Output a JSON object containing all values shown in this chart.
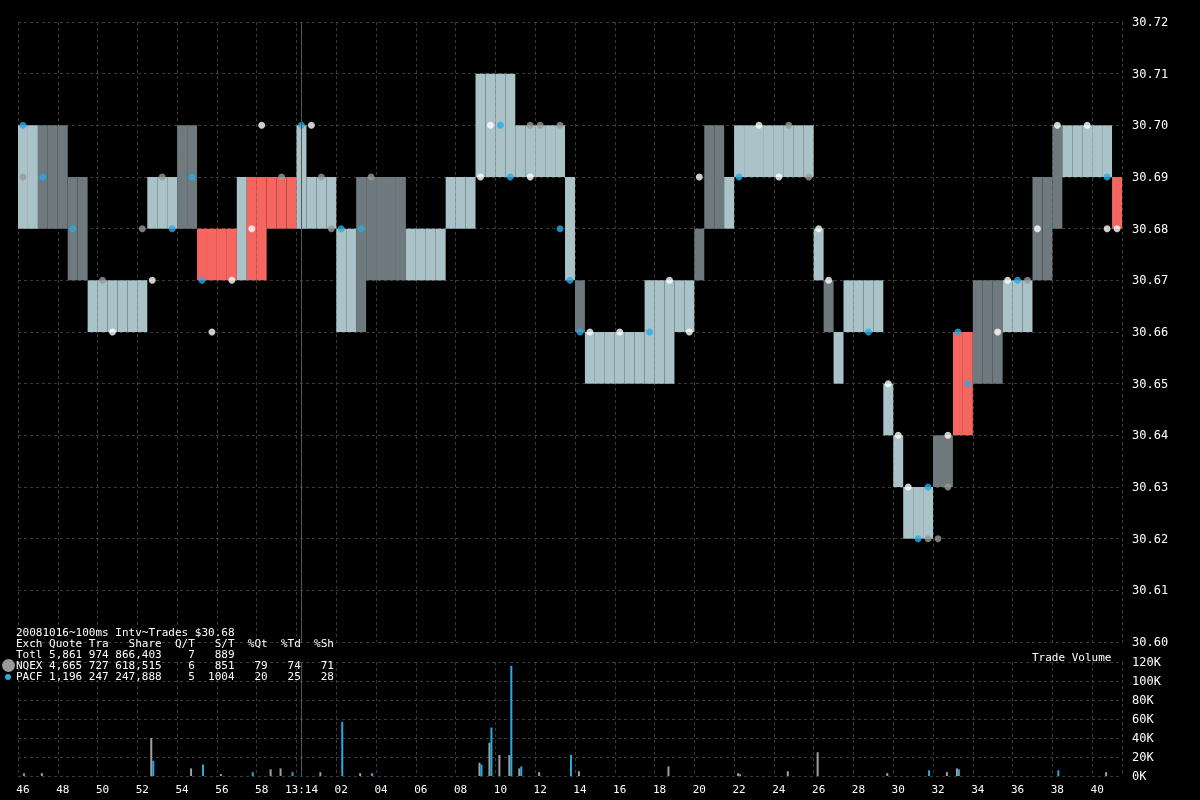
{
  "chart_data": [
    {
      "type": "bar",
      "title": "20081016~100ms Intv~Trades $30.68",
      "tick_labels": "y",
      "grid": true,
      "marker": "circle",
      "annotations": [
        "Exch Quote Tra   Share  Q/T   S/T  %Qt  %Td  %Sh",
        "Totl 5,861 974 866,403    7   889",
        "NQEX 4,665 727 618,515    6   851   79   74   71",
        "PACF 1,196 247 247,888    5  1004   20   25   28"
      ],
      "categories": [
        "46",
        null,
        null,
        null,
        "48",
        null,
        null,
        null,
        "50",
        null,
        null,
        null,
        "52",
        null,
        null,
        null,
        "54",
        null,
        null,
        null,
        "56",
        null,
        null,
        null,
        "58",
        null,
        null,
        null,
        "13:14",
        null,
        null,
        null,
        "02",
        null,
        null,
        null,
        "04",
        null,
        null,
        null,
        "06",
        null,
        null,
        null,
        "08",
        null,
        null,
        null,
        "10",
        null,
        null,
        null,
        "12",
        null,
        null,
        null,
        "14",
        null,
        null,
        null,
        "16",
        null,
        null,
        null,
        "18",
        null,
        null,
        null,
        "20",
        null,
        null,
        null,
        "22",
        null,
        null,
        null,
        "24",
        null,
        null,
        null,
        "26",
        null,
        null,
        null,
        "28",
        null,
        null,
        null,
        "30",
        null,
        null,
        null,
        "32",
        null,
        null,
        null,
        "34",
        null,
        null,
        null,
        "36",
        null,
        null,
        null,
        "38",
        null,
        null,
        null,
        "40",
        null,
        null
      ],
      "ylim": [
        30.6,
        30.72
      ],
      "yticks": [
        {
          "value": 30.6,
          "label": "30.60"
        },
        {
          "value": 30.61,
          "label": "30.61"
        },
        {
          "value": 30.62,
          "label": "30.62"
        },
        {
          "value": 30.63,
          "label": "30.63"
        },
        {
          "value": 30.64,
          "label": "30.64"
        },
        {
          "value": 30.65,
          "label": "30.65"
        },
        {
          "value": 30.66,
          "label": "30.66"
        },
        {
          "value": 30.67,
          "label": "30.67"
        },
        {
          "value": 30.68,
          "label": "30.68"
        },
        {
          "value": 30.69,
          "label": "30.69"
        },
        {
          "value": 30.7,
          "label": "30.70"
        },
        {
          "value": 30.71,
          "label": "30.71"
        },
        {
          "value": 30.72,
          "label": "30.72"
        }
      ],
      "ref_lines": [
        {
          "axis": "x",
          "value": "13:14",
          "color": "#555555"
        }
      ],
      "series": [
        {
          "base": [
            30.68,
            30.68,
            30.68,
            30.68,
            30.68,
            30.67,
            30.67,
            30.66,
            30.66,
            30.66,
            30.66,
            30.66,
            30.66,
            30.68,
            30.68,
            30.68,
            30.68,
            30.68,
            30.67,
            30.67,
            30.67,
            30.67,
            30.67,
            30.67,
            30.67,
            30.68,
            30.68,
            30.68,
            30.68,
            30.68,
            30.68,
            30.68,
            30.66,
            30.66,
            30.66,
            30.67,
            30.67,
            30.67,
            30.67,
            30.67,
            30.67,
            30.67,
            30.67,
            30.68,
            30.68,
            30.68,
            30.69,
            30.69,
            30.69,
            30.69,
            30.69,
            30.69,
            30.69,
            30.69,
            30.69,
            30.67,
            30.66,
            30.65,
            30.65,
            30.65,
            30.65,
            30.65,
            30.65,
            30.65,
            30.65,
            30.65,
            30.66,
            30.66,
            30.67,
            30.68,
            30.68,
            30.68,
            30.69,
            30.69,
            30.69,
            30.69,
            30.69,
            30.69,
            30.69,
            30.69,
            30.67,
            30.66,
            30.65,
            30.66,
            30.66,
            30.66,
            30.66,
            30.64,
            30.63,
            30.62,
            30.62,
            30.62,
            30.63,
            30.63,
            30.64,
            30.64,
            30.65,
            30.65,
            30.65,
            30.66,
            30.66,
            30.66,
            30.67,
            30.67,
            30.68,
            30.69,
            30.69,
            30.69,
            30.69,
            30.69,
            30.68
          ],
          "values": [
            0.02,
            0.02,
            0.02,
            0.02,
            0.02,
            0.02,
            0.02,
            0.01,
            0.01,
            0.01,
            0.01,
            0.01,
            0.01,
            0.01,
            0.01,
            0.01,
            0.02,
            0.02,
            0.01,
            0.01,
            0.01,
            0.01,
            0.02,
            0.02,
            0.02,
            0.01,
            0.01,
            0.01,
            0.02,
            0.01,
            0.01,
            0.01,
            0.02,
            0.02,
            0.03,
            0.02,
            0.02,
            0.02,
            0.02,
            0.01,
            0.01,
            0.01,
            0.01,
            0.01,
            0.01,
            0.01,
            0.02,
            0.02,
            0.02,
            0.02,
            0.01,
            0.01,
            0.01,
            0.01,
            0.01,
            0.02,
            0.01,
            0.01,
            0.01,
            0.01,
            0.01,
            0.01,
            0.01,
            0.02,
            0.02,
            0.02,
            0.01,
            0.01,
            0.01,
            0.02,
            0.02,
            0.01,
            0.01,
            0.01,
            0.01,
            0.01,
            0.01,
            0.01,
            0.01,
            0.01,
            0.01,
            0.01,
            0.01,
            0.01,
            0.01,
            0.01,
            0.01,
            0.01,
            0.01,
            0.01,
            0.01,
            0.01,
            0.01,
            0.01,
            0.02,
            0.02,
            0.02,
            0.02,
            0.02,
            0.01,
            0.01,
            0.01,
            0.02,
            0.02,
            0.02,
            0.01,
            0.01,
            0.01,
            0.01,
            0.01,
            0.01
          ],
          "colors": [
            "#a9c3c9",
            "#a9c3c9",
            "#6f7a7e",
            "#6f7a7e",
            "#6f7a7e",
            "#6f7a7e",
            "#6f7a7e",
            "#a9c3c9",
            "#a9c3c9",
            "#a9c3c9",
            "#a9c3c9",
            "#a9c3c9",
            "#a9c3c9",
            "#a9c3c9",
            "#a9c3c9",
            "#a9c3c9",
            "#6f7a7e",
            "#6f7a7e",
            "#f4665f",
            "#f4665f",
            "#f4665f",
            "#f4665f",
            "#a9c3c9",
            "#f4665f",
            "#f4665f",
            "#f4665f",
            "#f4665f",
            "#f4665f",
            "#a9c3c9",
            "#a9c3c9",
            "#a9c3c9",
            "#a9c3c9",
            "#a9c3c9",
            "#a9c3c9",
            "#6f7a7e",
            "#6f7a7e",
            "#6f7a7e",
            "#6f7a7e",
            "#6f7a7e",
            "#a9c3c9",
            "#a9c3c9",
            "#a9c3c9",
            "#a9c3c9",
            "#a9c3c9",
            "#a9c3c9",
            "#a9c3c9",
            "#a9c3c9",
            "#a9c3c9",
            "#a9c3c9",
            "#a9c3c9",
            "#a9c3c9",
            "#a9c3c9",
            "#a9c3c9",
            "#a9c3c9",
            "#a9c3c9",
            "#a9c3c9",
            "#6f7a7e",
            "#a9c3c9",
            "#a9c3c9",
            "#a9c3c9",
            "#a9c3c9",
            "#a9c3c9",
            "#a9c3c9",
            "#a9c3c9",
            "#a9c3c9",
            "#a9c3c9",
            "#a9c3c9",
            "#a9c3c9",
            "#6f7a7e",
            "#6f7a7e",
            "#6f7a7e",
            "#a9c3c9",
            "#a9c3c9",
            "#a9c3c9",
            "#a9c3c9",
            "#a9c3c9",
            "#a9c3c9",
            "#a9c3c9",
            "#a9c3c9",
            "#a9c3c9",
            "#a9c3c9",
            "#6f7a7e",
            "#a9c3c9",
            "#a9c3c9",
            "#a9c3c9",
            "#a9c3c9",
            "#a9c3c9",
            "#a9c3c9",
            "#a9c3c9",
            "#a9c3c9",
            "#a9c3c9",
            "#a9c3c9",
            "#6f7a7e",
            "#6f7a7e",
            "#f4665f",
            "#f4665f",
            "#6f7a7e",
            "#6f7a7e",
            "#6f7a7e",
            "#a9c3c9",
            "#a9c3c9",
            "#a9c3c9",
            "#6f7a7e",
            "#6f7a7e",
            "#6f7a7e",
            "#a9c3c9",
            "#a9c3c9",
            "#a9c3c9",
            "#a9c3c9",
            "#a9c3c9",
            "#f4665f"
          ]
        },
        {
          "type": "scatter",
          "color": "#999999",
          "values": [
            30.69,
            null,
            null,
            null,
            null,
            null,
            null,
            null,
            30.67,
            null,
            null,
            null,
            30.68,
            null,
            30.69,
            null,
            null,
            null,
            null,
            null,
            null,
            null,
            null,
            null,
            null,
            null,
            30.69,
            null,
            null,
            null,
            30.69,
            30.68,
            null,
            null,
            null,
            30.69,
            null,
            null,
            null,
            null,
            null,
            null,
            null,
            null,
            null,
            null,
            null,
            null,
            null,
            null,
            null,
            30.7,
            30.7,
            null,
            30.7,
            null,
            null,
            null,
            null,
            null,
            null,
            null,
            null,
            null,
            null,
            null,
            null,
            null,
            null,
            null,
            null,
            null,
            null,
            null,
            null,
            null,
            null,
            30.7,
            null,
            30.69,
            null,
            null,
            null,
            null,
            null,
            null,
            null,
            null,
            null,
            null,
            null,
            30.62,
            30.62,
            30.63,
            null,
            null,
            null,
            null,
            null,
            null,
            null,
            30.67,
            null,
            null,
            null,
            null,
            null,
            null,
            null,
            null,
            null
          ]
        },
        {
          "type": "scatter",
          "color": "#29abe2",
          "values": [
            30.7,
            null,
            30.69,
            null,
            null,
            30.68,
            null,
            null,
            null,
            null,
            null,
            null,
            null,
            null,
            null,
            30.68,
            null,
            30.69,
            30.67,
            null,
            null,
            null,
            null,
            null,
            null,
            null,
            null,
            null,
            30.7,
            null,
            null,
            null,
            30.68,
            null,
            30.68,
            null,
            null,
            null,
            null,
            null,
            null,
            null,
            null,
            null,
            null,
            null,
            null,
            null,
            30.7,
            30.69,
            null,
            null,
            null,
            null,
            30.68,
            30.67,
            30.66,
            null,
            null,
            null,
            null,
            null,
            null,
            30.66,
            null,
            null,
            null,
            null,
            null,
            null,
            null,
            null,
            30.69,
            null,
            null,
            null,
            null,
            null,
            null,
            null,
            null,
            null,
            null,
            null,
            null,
            30.66,
            null,
            null,
            null,
            null,
            30.62,
            30.63,
            null,
            null,
            30.66,
            30.65,
            null,
            null,
            null,
            null,
            30.67,
            null,
            null,
            null,
            null,
            null,
            null,
            null,
            null,
            30.69,
            null
          ]
        },
        {
          "type": "scatter",
          "color": "#ffffff",
          "values": [
            null,
            null,
            null,
            null,
            null,
            null,
            null,
            null,
            null,
            30.66,
            null,
            null,
            null,
            30.67,
            null,
            null,
            null,
            null,
            null,
            30.66,
            null,
            30.67,
            null,
            30.68,
            30.7,
            null,
            null,
            null,
            null,
            30.7,
            null,
            null,
            null,
            null,
            null,
            null,
            null,
            null,
            null,
            null,
            null,
            null,
            null,
            null,
            null,
            null,
            30.69,
            30.7,
            null,
            null,
            null,
            30.69,
            null,
            null,
            null,
            null,
            null,
            30.66,
            null,
            null,
            30.66,
            null,
            null,
            null,
            null,
            30.67,
            null,
            30.66,
            30.69,
            null,
            null,
            null,
            null,
            null,
            30.7,
            null,
            30.69,
            null,
            null,
            null,
            30.68,
            30.67,
            null,
            null,
            null,
            null,
            null,
            30.65,
            30.64,
            30.63,
            null,
            null,
            null,
            30.64,
            null,
            null,
            null,
            null,
            30.66,
            30.67,
            null,
            null,
            30.68,
            null,
            30.7,
            null,
            null,
            30.7,
            null,
            30.68,
            30.68
          ]
        }
      ]
    },
    {
      "type": "bar",
      "title": "Trade Volume",
      "grid": true,
      "categories": [
        "46",
        null,
        null,
        null,
        "48",
        null,
        null,
        null,
        "50",
        null,
        null,
        null,
        "52",
        null,
        null,
        null,
        "54",
        null,
        null,
        null,
        "56",
        null,
        null,
        null,
        "58",
        null,
        null,
        null,
        "13:14",
        null,
        null,
        null,
        "02",
        null,
        null,
        null,
        "04",
        null,
        null,
        null,
        "06",
        null,
        null,
        null,
        "08",
        null,
        null,
        null,
        "10",
        null,
        null,
        null,
        "12",
        null,
        null,
        null,
        "14",
        null,
        null,
        null,
        "16",
        null,
        null,
        null,
        "18",
        null,
        null,
        null,
        "20",
        null,
        null,
        null,
        "22",
        null,
        null,
        null,
        "24",
        null,
        null,
        null,
        "26",
        null,
        null,
        null,
        "28",
        null,
        null,
        null,
        "30",
        null,
        null,
        null,
        "32",
        null,
        null,
        null,
        "34",
        null,
        null,
        null,
        "36",
        null,
        null,
        null,
        "38",
        null,
        null,
        null,
        "40",
        null,
        null
      ],
      "ylim": [
        0,
        120000
      ],
      "yticks": [
        {
          "value": 0,
          "label": "0K"
        },
        {
          "value": 20000,
          "label": "20K"
        },
        {
          "value": 40000,
          "label": "40K"
        },
        {
          "value": 60000,
          "label": "60K"
        },
        {
          "value": 80000,
          "label": "80K"
        },
        {
          "value": 100000,
          "label": "100K"
        },
        {
          "value": 120000,
          "label": "120K"
        }
      ],
      "ref_lines": [
        {
          "axis": "x",
          "value": "13:14",
          "color": "#555555"
        }
      ],
      "series": [
        {
          "color": "#a0a0a0",
          "values": [
            null,
            null,
            3000,
            null,
            null,
            null,
            null,
            null,
            null,
            null,
            null,
            null,
            null,
            40000,
            null,
            null,
            null,
            8000,
            null,
            null,
            2000,
            null,
            null,
            null,
            null,
            7000,
            8000,
            null,
            null,
            null,
            4000,
            null,
            null,
            null,
            3000,
            null,
            null,
            null,
            null,
            null,
            null,
            null,
            null,
            null,
            null,
            null,
            14000,
            35000,
            22000,
            22000,
            8000,
            null,
            4000,
            null,
            null,
            null,
            5000,
            null,
            null,
            null,
            null,
            null,
            null,
            null,
            null,
            10000,
            null,
            null,
            null,
            null,
            null,
            null,
            3000,
            null,
            null,
            null,
            null,
            5000,
            null,
            null,
            25000,
            null,
            null,
            null,
            null,
            null,
            null,
            3000,
            null,
            null,
            null,
            null,
            null,
            4000,
            8000,
            null,
            null,
            null,
            null,
            null,
            null,
            null,
            null,
            null,
            null,
            null,
            null,
            null,
            null,
            4000,
            null
          ]
        },
        {
          "color": "#29abe2",
          "values": [
            3000,
            null,
            null,
            null,
            null,
            null,
            null,
            null,
            null,
            null,
            null,
            null,
            null,
            16000,
            null,
            null,
            null,
            null,
            12000,
            null,
            null,
            null,
            null,
            4000,
            null,
            null,
            null,
            4000,
            null,
            null,
            null,
            null,
            57000,
            null,
            null,
            3000,
            null,
            null,
            null,
            null,
            null,
            null,
            null,
            null,
            null,
            null,
            12000,
            51000,
            null,
            116000,
            10000,
            null,
            null,
            null,
            null,
            22000,
            null,
            null,
            null,
            null,
            null,
            null,
            null,
            null,
            null,
            null,
            null,
            null,
            null,
            null,
            null,
            null,
            2000,
            null,
            null,
            null,
            null,
            null,
            null,
            null,
            null,
            null,
            null,
            null,
            null,
            null,
            null,
            null,
            null,
            null,
            null,
            6000,
            null,
            null,
            7000,
            null,
            null,
            null,
            null,
            null,
            null,
            null,
            null,
            null,
            6000,
            null,
            null,
            null,
            null,
            null,
            null
          ]
        }
      ]
    }
  ]
}
